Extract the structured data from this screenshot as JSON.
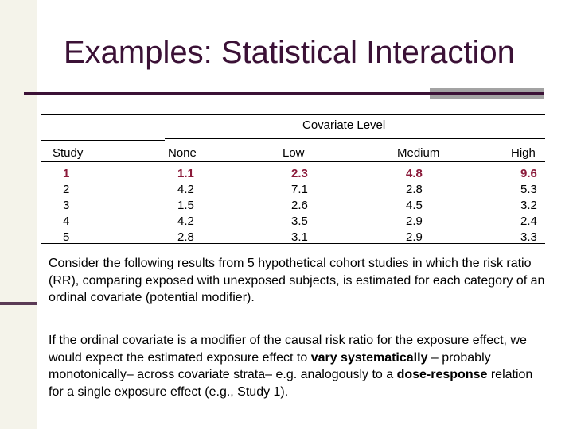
{
  "slide": {
    "title": "Examples: Statistical Interaction"
  },
  "table": {
    "group_header": "Covariate Level",
    "columns": [
      "Study",
      "None",
      "Low",
      "Medium",
      "High"
    ],
    "rows": [
      [
        "1",
        "1.1",
        "2.3",
        "4.8",
        "9.6"
      ],
      [
        "2",
        "4.2",
        "7.1",
        "2.8",
        "5.3"
      ],
      [
        "3",
        "1.5",
        "2.6",
        "4.5",
        "3.2"
      ],
      [
        "4",
        "4.2",
        "3.5",
        "2.9",
        "2.4"
      ],
      [
        "5",
        "2.8",
        "3.1",
        "2.9",
        "3.3"
      ]
    ],
    "highlight_color": "#8b1a3a"
  },
  "paragraphs": {
    "p1": "Consider the following results from 5 hypothetical cohort studies in which the risk ratio (RR), comparing exposed with unexposed subjects, is estimated for each category of an ordinal covariate (potential modifier).",
    "p2": {
      "t1": "If the ordinal covariate is a modifier of the causal risk ratio for the exposure effect, we would expect the estimated exposure effect to ",
      "b1": "vary systematically",
      "t2": " – probably monotonically– across covariate strata– e.g. analogously to a ",
      "b2": "dose-response",
      "t3": " relation for a single exposure effect (e.g., Study 1)."
    }
  },
  "colors": {
    "title": "#3b1136",
    "accent_bar": "#a3a3a3",
    "side_strip": "#f4f3ea"
  }
}
